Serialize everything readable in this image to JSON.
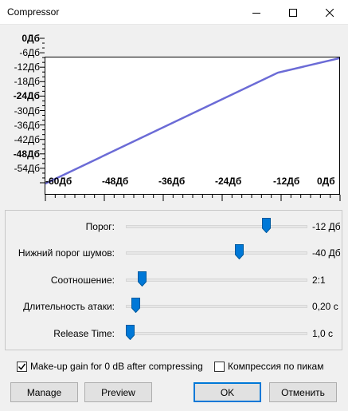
{
  "window": {
    "title": "Compressor",
    "minimize_icon": "minimize-icon",
    "maximize_icon": "maximize-icon",
    "close_icon": "close-icon"
  },
  "graph": {
    "y_labels": [
      {
        "text": "0Дб",
        "bold": true
      },
      {
        "text": "-6Дб",
        "bold": false
      },
      {
        "text": "-12Дб",
        "bold": false
      },
      {
        "text": "-18Дб",
        "bold": false
      },
      {
        "text": "-24Дб",
        "bold": true
      },
      {
        "text": "-30Дб",
        "bold": false
      },
      {
        "text": "-36Дб",
        "bold": false
      },
      {
        "text": "-42Дб",
        "bold": false
      },
      {
        "text": "-48Дб",
        "bold": true
      },
      {
        "text": "-54Дб",
        "bold": false
      }
    ],
    "x_labels": [
      "-60Дб",
      "-48Дб",
      "-36Дб",
      "-24Дб",
      "-12Дб",
      "0Дб"
    ],
    "line_color": "#6b6bd6"
  },
  "settings": {
    "threshold": {
      "label": "Порог:",
      "value": "-12 Дб",
      "position": 0.79
    },
    "noise_floor": {
      "label": "Нижний порог шумов:",
      "value": "-40 Дб",
      "position": 0.63
    },
    "ratio": {
      "label": "Соотношение:",
      "value": "2:1",
      "position": 0.07
    },
    "attack": {
      "label": "Длительность атаки:",
      "value": "0,20 с",
      "position": 0.03
    },
    "release": {
      "label": "Release Time:",
      "value": "1,0 с",
      "position": 0.0
    },
    "accent_color": "#0078d7"
  },
  "options": {
    "makeup_gain": {
      "label": "Make-up gain for 0 dB after compressing",
      "checked": true
    },
    "peak_compression": {
      "label": "Компрессия по пикам",
      "checked": false
    }
  },
  "buttons": {
    "manage": "Manage",
    "preview": "Preview",
    "ok": "OK",
    "cancel": "Отменить"
  }
}
